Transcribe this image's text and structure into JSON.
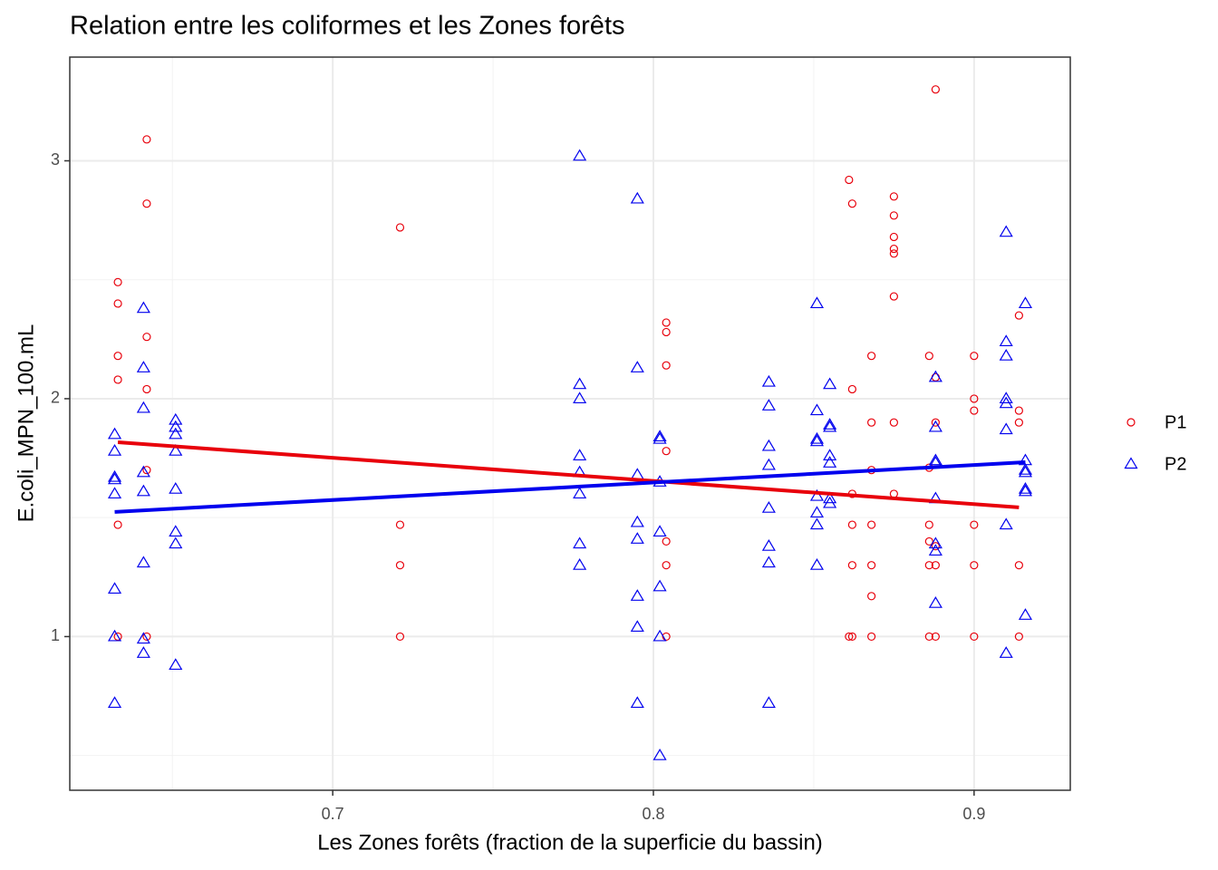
{
  "chart_data": {
    "type": "scatter",
    "title": "Relation entre les coliformes et les Zones forêts",
    "xlabel": "Les Zones forêts (fraction de la superficie du bassin)",
    "ylabel": "E.coli_MPN_100.mL",
    "xlim": [
      0.618,
      0.93
    ],
    "ylim": [
      0.354,
      3.436
    ],
    "xticks": [
      0.7,
      0.8,
      0.9
    ],
    "yticks": [
      1,
      2,
      3
    ],
    "x_minor_grid": [
      0.65,
      0.75,
      0.85
    ],
    "y_minor_grid": [
      0.5,
      1.5,
      2.5
    ],
    "grid": true,
    "legend": "right",
    "series": [
      {
        "name": "P1",
        "color": "#e8000b",
        "marker": "circle",
        "x": [
          0.633,
          0.633,
          0.633,
          0.633,
          0.633,
          0.633,
          0.642,
          0.642,
          0.642,
          0.642,
          0.642,
          0.642,
          0.721,
          0.721,
          0.721,
          0.721,
          0.804,
          0.804,
          0.804,
          0.804,
          0.804,
          0.804,
          0.804,
          0.861,
          0.861,
          0.862,
          0.862,
          0.862,
          0.862,
          0.862,
          0.862,
          0.868,
          0.868,
          0.868,
          0.868,
          0.868,
          0.868,
          0.868,
          0.875,
          0.875,
          0.875,
          0.875,
          0.875,
          0.875,
          0.875,
          0.875,
          0.886,
          0.886,
          0.886,
          0.886,
          0.886,
          0.886,
          0.888,
          0.888,
          0.888,
          0.888,
          0.888,
          0.888,
          0.9,
          0.9,
          0.9,
          0.9,
          0.9,
          0.9,
          0.914,
          0.914,
          0.914,
          0.914,
          0.914
        ],
        "values": [
          2.49,
          2.4,
          2.18,
          2.08,
          1.47,
          1.0,
          3.09,
          2.82,
          2.26,
          2.04,
          1.7,
          1.0,
          2.72,
          1.47,
          1.3,
          1.0,
          2.32,
          2.28,
          2.14,
          1.78,
          1.4,
          1.3,
          1.0,
          2.92,
          1.0,
          2.82,
          2.04,
          1.6,
          1.47,
          1.3,
          1.0,
          2.18,
          1.9,
          1.7,
          1.47,
          1.3,
          1.17,
          1.0,
          2.85,
          2.77,
          2.68,
          2.63,
          2.61,
          2.43,
          1.9,
          1.6,
          2.18,
          1.71,
          1.47,
          1.4,
          1.3,
          1.0,
          3.3,
          2.09,
          1.9,
          1.38,
          1.3,
          1.0,
          2.18,
          2.0,
          1.95,
          1.47,
          1.3,
          1.0,
          2.35,
          1.95,
          1.9,
          1.3,
          1.0
        ],
        "fit": {
          "x": [
            0.633,
            0.914
          ],
          "values": [
            1.817,
            1.543
          ]
        }
      },
      {
        "name": "P2",
        "color": "#0000ee",
        "marker": "triangle",
        "x": [
          0.632,
          0.632,
          0.632,
          0.632,
          0.632,
          0.632,
          0.632,
          0.632,
          0.641,
          0.641,
          0.641,
          0.641,
          0.641,
          0.641,
          0.641,
          0.641,
          0.651,
          0.651,
          0.651,
          0.651,
          0.651,
          0.651,
          0.651,
          0.651,
          0.777,
          0.777,
          0.777,
          0.777,
          0.777,
          0.777,
          0.777,
          0.777,
          0.795,
          0.795,
          0.795,
          0.795,
          0.795,
          0.795,
          0.795,
          0.795,
          0.802,
          0.802,
          0.802,
          0.802,
          0.802,
          0.802,
          0.802,
          0.836,
          0.836,
          0.836,
          0.836,
          0.836,
          0.836,
          0.836,
          0.836,
          0.851,
          0.851,
          0.851,
          0.851,
          0.851,
          0.851,
          0.851,
          0.851,
          0.855,
          0.855,
          0.855,
          0.855,
          0.855,
          0.855,
          0.855,
          0.888,
          0.888,
          0.888,
          0.888,
          0.888,
          0.888,
          0.888,
          0.888,
          0.91,
          0.91,
          0.91,
          0.91,
          0.91,
          0.91,
          0.91,
          0.91,
          0.916,
          0.916,
          0.916,
          0.916,
          0.916,
          0.916,
          0.916
        ],
        "values": [
          1.85,
          1.78,
          1.67,
          1.66,
          1.6,
          1.2,
          1.0,
          0.72,
          2.38,
          2.13,
          1.96,
          1.69,
          1.61,
          1.31,
          0.99,
          0.93,
          1.91,
          1.88,
          1.85,
          1.78,
          1.62,
          1.44,
          1.39,
          0.88,
          3.02,
          2.06,
          2.0,
          1.76,
          1.69,
          1.6,
          1.39,
          1.3,
          2.84,
          2.13,
          1.68,
          1.48,
          1.41,
          1.17,
          1.04,
          0.72,
          1.84,
          1.83,
          1.65,
          1.44,
          1.21,
          1.0,
          0.5,
          2.07,
          1.97,
          1.8,
          1.72,
          1.54,
          1.38,
          1.31,
          0.72,
          2.4,
          1.95,
          1.83,
          1.82,
          1.59,
          1.52,
          1.47,
          1.3,
          2.06,
          1.89,
          1.88,
          1.76,
          1.73,
          1.58,
          1.56,
          2.09,
          1.88,
          1.74,
          1.73,
          1.58,
          1.39,
          1.36,
          1.14,
          2.7,
          2.24,
          2.18,
          2.0,
          1.98,
          1.87,
          1.47,
          0.93,
          2.4,
          1.74,
          1.7,
          1.69,
          1.62,
          1.61,
          1.09
        ],
        "fit": {
          "x": [
            0.632,
            0.916
          ],
          "values": [
            1.524,
            1.733
          ]
        }
      }
    ]
  }
}
